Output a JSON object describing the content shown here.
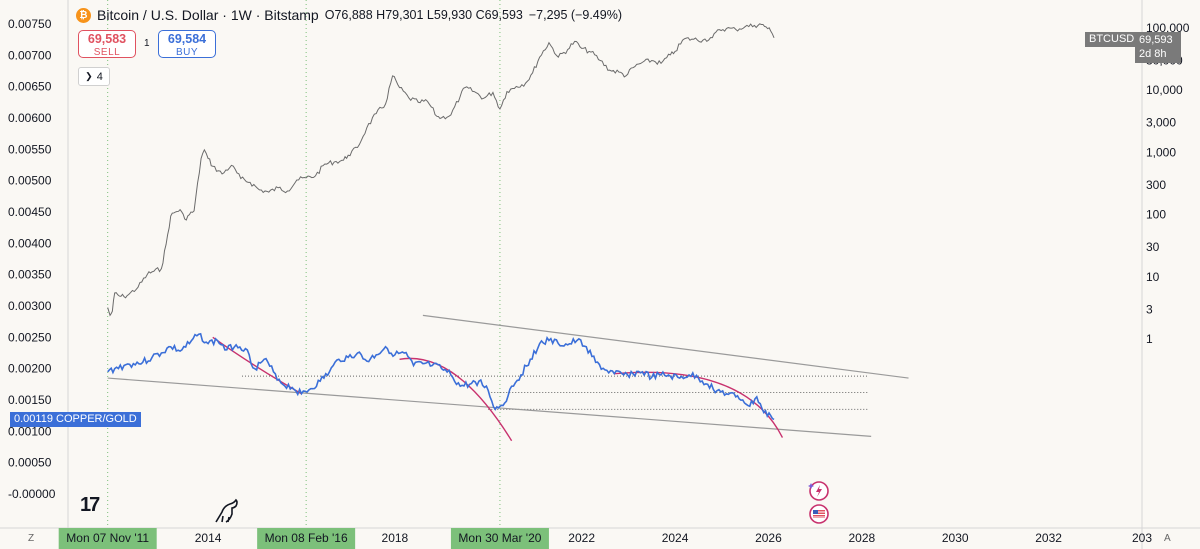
{
  "header": {
    "coin_glyph": "₿",
    "title": "Bitcoin / U.S. Dollar · 1W · Bitstamp",
    "open_label": "O",
    "open": "76,888",
    "high_label": "H",
    "high": "79,301",
    "low_label": "L",
    "low": "59,930",
    "close_label": "C",
    "close": "69,593",
    "change": "−7,295 (−9.49%)"
  },
  "trade": {
    "sell_price": "69,583",
    "sell_label": "SELL",
    "spread": "1",
    "buy_price": "69,584",
    "buy_label": "BUY"
  },
  "collapse": {
    "chevron": "❯",
    "count": "4"
  },
  "badges": {
    "btc_symbol": "BTCUSD",
    "btc_price": "69,593",
    "btc_countdown": "2d 8h",
    "cu_value": "0.00119",
    "cu_symbol": "COPPER/GOLD"
  },
  "buttons": {
    "z": "Z",
    "a": "A"
  },
  "colors": {
    "background": "#faf8f4",
    "btc_line": "#6b6b6b",
    "copper_gold_line": "#3b6fd8",
    "curve": "#c8326e",
    "channel": "#9a9a9a",
    "highlight": "#7cc07a",
    "vline": "#7cc07a"
  },
  "icons": {
    "tv_logo": "tradingview-logo-icon",
    "dino": "dino-icon",
    "events": [
      "earnings-bolt-icon",
      "us-flag-event-icon"
    ]
  },
  "chart_data": {
    "type": "line",
    "left_axis": {
      "ticks": [
        "0.00750",
        "0.00700",
        "0.00650",
        "0.00600",
        "0.00550",
        "0.00500",
        "0.00450",
        "0.00400",
        "0.00350",
        "0.00300",
        "0.00250",
        "0.00200",
        "0.00150",
        "0.00100",
        "0.00050",
        "-0.00000"
      ],
      "ylim": [
        0,
        0.0078
      ]
    },
    "right_axis": {
      "scale": "log",
      "ticks": [
        "100,000",
        "30,000",
        "10,000",
        "3,000",
        "1,000",
        "300",
        "100",
        "30",
        "10",
        "3",
        "1"
      ]
    },
    "x_axis": {
      "ticks": [
        "2014",
        "2018",
        "2022",
        "2024",
        "2026",
        "2028",
        "2030",
        "2032",
        "203"
      ],
      "highlights": [
        "Mon 07 Nov '11",
        "Mon 08 Feb '16",
        "Mon 30 Mar '20"
      ],
      "range": [
        2011.0,
        2034.0
      ]
    },
    "series": [
      {
        "name": "BTCUSD",
        "axis": "right",
        "x": [
          2011.85,
          2011.9,
          2011.95,
          2012.0,
          2012.1,
          2012.2,
          2012.3,
          2012.5,
          2012.7,
          2012.8,
          2013.0,
          2013.1,
          2013.2,
          2013.3,
          2013.4,
          2013.5,
          2013.6,
          2013.7,
          2013.85,
          2013.92,
          2014.0,
          2014.1,
          2014.3,
          2014.5,
          2014.7,
          2014.9,
          2015.1,
          2015.3,
          2015.5,
          2015.7,
          2015.9,
          2016.1,
          2016.3,
          2016.5,
          2016.7,
          2016.9,
          2017.0,
          2017.2,
          2017.4,
          2017.6,
          2017.8,
          2017.95,
          2018.1,
          2018.3,
          2018.5,
          2018.7,
          2018.9,
          2019.0,
          2019.2,
          2019.4,
          2019.5,
          2019.7,
          2019.9,
          2020.1,
          2020.25,
          2020.4,
          2020.6,
          2020.8,
          2020.95,
          2021.1,
          2021.3,
          2021.5,
          2021.7,
          2021.85,
          2022.0,
          2022.2,
          2022.4,
          2022.6,
          2022.8,
          2022.95,
          2023.1,
          2023.3,
          2023.5,
          2023.7,
          2023.9,
          2024.0,
          2024.2,
          2024.4,
          2024.6,
          2024.8,
          2024.95,
          2025.1,
          2025.3,
          2025.5,
          2025.7,
          2025.85,
          2025.95,
          2026.05,
          2026.12
        ],
        "values": [
          3.2,
          2.4,
          2.8,
          5.5,
          4.9,
          4.8,
          5.2,
          6.8,
          11,
          12,
          13.5,
          33,
          95,
          110,
          120,
          85,
          100,
          115,
          800,
          1100,
          800,
          600,
          450,
          620,
          380,
          330,
          250,
          230,
          270,
          240,
          360,
          390,
          420,
          650,
          700,
          750,
          900,
          1200,
          2500,
          4200,
          6000,
          17000,
          11000,
          7500,
          6400,
          6600,
          3800,
          3600,
          4000,
          8000,
          11000,
          9500,
          7400,
          9200,
          5000,
          9500,
          11500,
          13000,
          19000,
          34000,
          58000,
          34000,
          45000,
          61000,
          47000,
          41000,
          30000,
          21000,
          19500,
          17000,
          23000,
          28000,
          30000,
          27000,
          37000,
          42000,
          67000,
          66000,
          64000,
          70000,
          94000,
          98000,
          95000,
          105000,
          110000,
          114000,
          104000,
          89000,
          69593
        ]
      },
      {
        "name": "COPPER/GOLD",
        "axis": "left",
        "x": [
          2011.85,
          2012.0,
          2012.2,
          2012.4,
          2012.6,
          2012.8,
          2013.0,
          2013.2,
          2013.4,
          2013.6,
          2013.8,
          2014.0,
          2014.2,
          2014.4,
          2014.6,
          2014.8,
          2015.0,
          2015.2,
          2015.4,
          2015.6,
          2015.8,
          2016.0,
          2016.2,
          2016.4,
          2016.6,
          2016.8,
          2017.0,
          2017.2,
          2017.4,
          2017.6,
          2017.8,
          2018.0,
          2018.2,
          2018.4,
          2018.6,
          2018.8,
          2019.0,
          2019.2,
          2019.4,
          2019.6,
          2019.8,
          2020.0,
          2020.15,
          2020.25,
          2020.35,
          2020.5,
          2020.7,
          2020.9,
          2021.1,
          2021.3,
          2021.5,
          2021.7,
          2021.9,
          2022.1,
          2022.3,
          2022.5,
          2022.7,
          2022.9,
          2023.1,
          2023.3,
          2023.5,
          2023.7,
          2023.9,
          2024.1,
          2024.3,
          2024.5,
          2024.7,
          2024.9,
          2025.1,
          2025.3,
          2025.45,
          2025.6,
          2025.75,
          2025.9,
          2026.05,
          2026.12
        ],
        "values": [
          0.00195,
          0.002,
          0.00205,
          0.00208,
          0.0021,
          0.00218,
          0.00225,
          0.00235,
          0.00228,
          0.0024,
          0.00255,
          0.0024,
          0.00245,
          0.0023,
          0.00238,
          0.00232,
          0.002,
          0.00215,
          0.00195,
          0.00175,
          0.0017,
          0.0016,
          0.00168,
          0.0018,
          0.00195,
          0.00215,
          0.00218,
          0.00225,
          0.00212,
          0.00222,
          0.00235,
          0.00222,
          0.00225,
          0.00205,
          0.00208,
          0.00205,
          0.002,
          0.0019,
          0.00172,
          0.00175,
          0.0018,
          0.00165,
          0.00135,
          0.0014,
          0.00145,
          0.00172,
          0.0019,
          0.00215,
          0.0024,
          0.00245,
          0.0024,
          0.00238,
          0.00245,
          0.00235,
          0.0021,
          0.00198,
          0.00192,
          0.0019,
          0.00192,
          0.00195,
          0.00186,
          0.0019,
          0.00188,
          0.00185,
          0.0019,
          0.00185,
          0.00175,
          0.00165,
          0.0016,
          0.00155,
          0.0015,
          0.0014,
          0.00155,
          0.0013,
          0.00125,
          0.00119
        ]
      }
    ],
    "annotations": {
      "channel_upper": [
        [
          2018.6,
          0.00285
        ],
        [
          2029.0,
          0.00185
        ]
      ],
      "channel_lower": [
        [
          2011.85,
          0.00185
        ],
        [
          2028.2,
          0.00092
        ]
      ],
      "dotted_levels": [
        0.00188,
        0.00162,
        0.00135
      ],
      "vertical_markers": [
        2011.85,
        2016.1,
        2020.25
      ],
      "arcs": [
        [
          [
            2014.1,
            0.0025
          ],
          [
            2015.0,
            0.00205
          ],
          [
            2016.0,
            0.0016
          ]
        ],
        [
          [
            2018.1,
            0.00215
          ],
          [
            2019.3,
            0.0019
          ],
          [
            2020.5,
            0.00085
          ]
        ],
        [
          [
            2022.7,
            0.00192
          ],
          [
            2025.0,
            0.00175
          ],
          [
            2026.3,
            0.0009
          ]
        ]
      ]
    },
    "grid": false,
    "legend": "none"
  }
}
